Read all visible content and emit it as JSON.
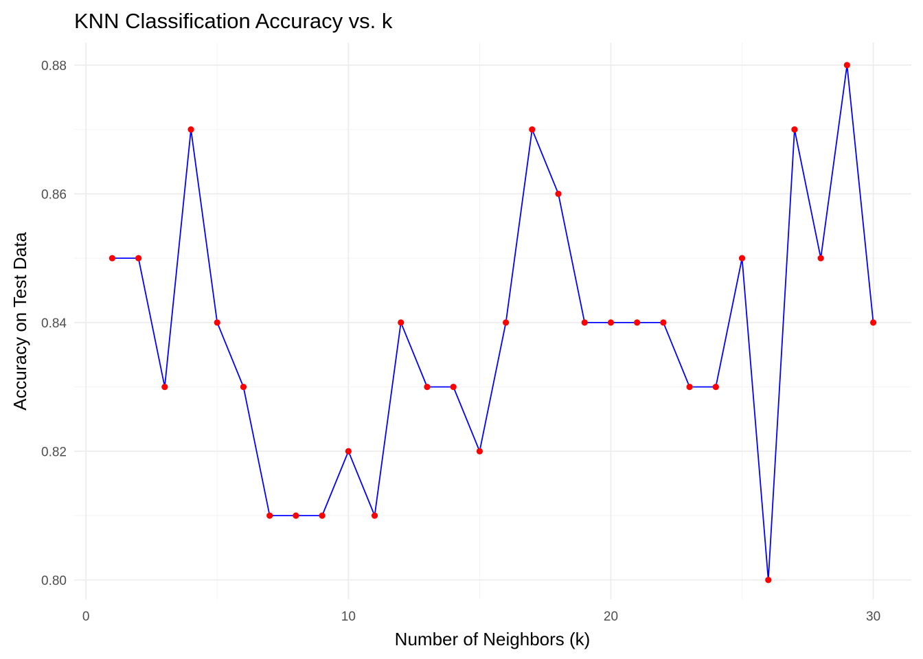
{
  "chart_data": {
    "type": "line",
    "title": "KNN Classification Accuracy vs. k",
    "xlabel": "Number of Neighbors (k)",
    "ylabel": "Accuracy on Test Data",
    "xlim": [
      -0.45,
      31.45
    ],
    "ylim": [
      0.797,
      0.8835
    ],
    "x_ticks": [
      0,
      10,
      20,
      30
    ],
    "x_tick_labels": [
      "0",
      "10",
      "20",
      "30"
    ],
    "x_minor_ticks": [
      5,
      15,
      25
    ],
    "y_ticks": [
      0.8,
      0.82,
      0.84,
      0.86,
      0.88
    ],
    "y_tick_labels": [
      "0.80",
      "0.82",
      "0.84",
      "0.86",
      "0.88"
    ],
    "y_minor_ticks": [
      0.81,
      0.83,
      0.85,
      0.87
    ],
    "grid": true,
    "line_color": "#0000ff",
    "point_color": "#ff0000",
    "series": [
      {
        "x": [
          1,
          2,
          3,
          4,
          5,
          6,
          7,
          8,
          9,
          10,
          11,
          12,
          13,
          14,
          15,
          16,
          17,
          18,
          19,
          20,
          21,
          22,
          23,
          24,
          25,
          26,
          27,
          28,
          29,
          30
        ],
        "y": [
          0.85,
          0.85,
          0.83,
          0.87,
          0.84,
          0.83,
          0.81,
          0.81,
          0.81,
          0.82,
          0.81,
          0.84,
          0.83,
          0.83,
          0.82,
          0.84,
          0.87,
          0.86,
          0.84,
          0.84,
          0.84,
          0.84,
          0.83,
          0.83,
          0.85,
          0.8,
          0.87,
          0.85,
          0.88,
          0.84
        ]
      }
    ]
  }
}
